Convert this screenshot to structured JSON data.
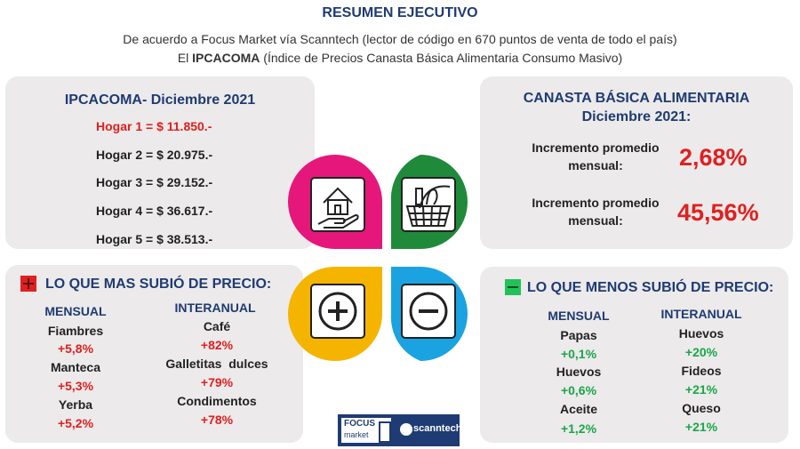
{
  "header": {
    "title": "RESUMEN EJECUTIVO",
    "line1": "De acuerdo a Focus Market vía Scanntech (lector de código en 670 puntos de venta de todo el país)",
    "line2_prefix": "El ",
    "line2_bold": "IPCACOMA",
    "line2_rest": " (Índice de Precios Canasta Básica Alimentaria Consumo Masivo)"
  },
  "ipcacoma": {
    "title": "IPCACOMA- Diciembre 2021",
    "hogares": [
      "Hogar 1 = $ 11.850.-",
      "Hogar 2 = $ 20.975.-",
      "Hogar 3 = $ 29.152.-",
      "Hogar 4 = $ 36.617.-",
      "Hogar 5 = $ 38.513.-"
    ]
  },
  "canasta": {
    "title1": "CANASTA BÁSICA ALIMENTARIA",
    "title2": "Diciembre 2021:",
    "mensual_label1": "Incremento promedio",
    "mensual_label2": "mensual:",
    "mensual_value": "2,68%",
    "interanual_label1": "Incremento promedio",
    "interanual_label2": "mensual:",
    "interanual_value": "45,56%"
  },
  "mas_subio": {
    "title": "LO QUE MAS SUBIÓ DE PRECIO:",
    "col1": "MENSUAL",
    "col2": "INTERANUAL",
    "mensual": [
      {
        "name": "Fiambres",
        "value": "+5,8%"
      },
      {
        "name": "Manteca",
        "value": "+5,3%"
      },
      {
        "name": "Yerba",
        "value": "+5,2%"
      }
    ],
    "interanual": [
      {
        "name": "Café",
        "value": "+82%"
      },
      {
        "name": "Galletitas  dulces",
        "value": "+79%"
      },
      {
        "name": "Condimentos",
        "value": "+78%"
      }
    ]
  },
  "menos_subio": {
    "title": "LO QUE MENOS SUBIÓ DE PRECIO:",
    "col1": "MENSUAL",
    "col2": "INTERANUAL",
    "mensual": [
      {
        "name": "Papas",
        "value": "+0,1%"
      },
      {
        "name": "Huevos",
        "value": "+0,6%"
      },
      {
        "name": "Aceite",
        "value": "+1,2%"
      }
    ],
    "interanual": [
      {
        "name": "Huevos",
        "value": "+20%"
      },
      {
        "name": "Fideos",
        "value": "+21%"
      },
      {
        "name": "Queso",
        "value": "+21%"
      }
    ]
  },
  "logos": {
    "focus": "FOCUS",
    "market": "market",
    "scanntech": "scanntech"
  },
  "colors": {
    "navy": "#1f3b73",
    "red": "#e02020",
    "green": "#1aa64a",
    "pink": "#e6177a",
    "dark_green": "#1f8a3a",
    "yellow": "#f4b400",
    "blue": "#1aa3e0"
  }
}
